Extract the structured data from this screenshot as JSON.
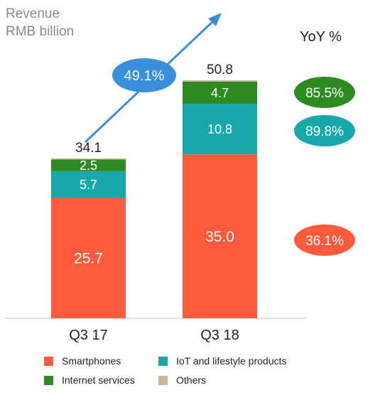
{
  "chart_data": {
    "type": "bar",
    "stacked": true,
    "unit_lines": [
      "Revenue",
      "RMB billion"
    ],
    "categories": [
      "Q3 17",
      "Q3 18"
    ],
    "totals": [
      34.1,
      50.8
    ],
    "series": [
      {
        "name": "Smartphones",
        "values": [
          25.7,
          35.0
        ],
        "labels": [
          "25.7",
          "35.0"
        ],
        "color": "#ff5a3c"
      },
      {
        "name": "IoT and lifestyle products",
        "values": [
          5.7,
          10.8
        ],
        "labels": [
          "5.7",
          "10.8"
        ],
        "color": "#18a8ac"
      },
      {
        "name": "Internet services",
        "values": [
          2.5,
          4.7
        ],
        "labels": [
          "2.5",
          "4.7"
        ],
        "color": "#2e8b22"
      },
      {
        "name": "Others",
        "values": [
          0.2,
          0.3
        ],
        "labels": [
          "",
          ""
        ],
        "color": "#c7b89c"
      }
    ],
    "growth_total": "49.1%",
    "growth_color": "#3a8fdd",
    "yoy_title": "YoY %",
    "yoy": [
      {
        "series": "Internet services",
        "value": "85.5%",
        "color": "#2e8b22"
      },
      {
        "series": "IoT and lifestyle products",
        "value": "89.8%",
        "color": "#18a8ac"
      },
      {
        "series": "Smartphones",
        "value": "36.1%",
        "color": "#ff5a3c"
      }
    ],
    "legend_order": [
      "Smartphones",
      "IoT and lifestyle products",
      "Internet services",
      "Others"
    ],
    "legend_placement": "bottom",
    "grid": false
  }
}
